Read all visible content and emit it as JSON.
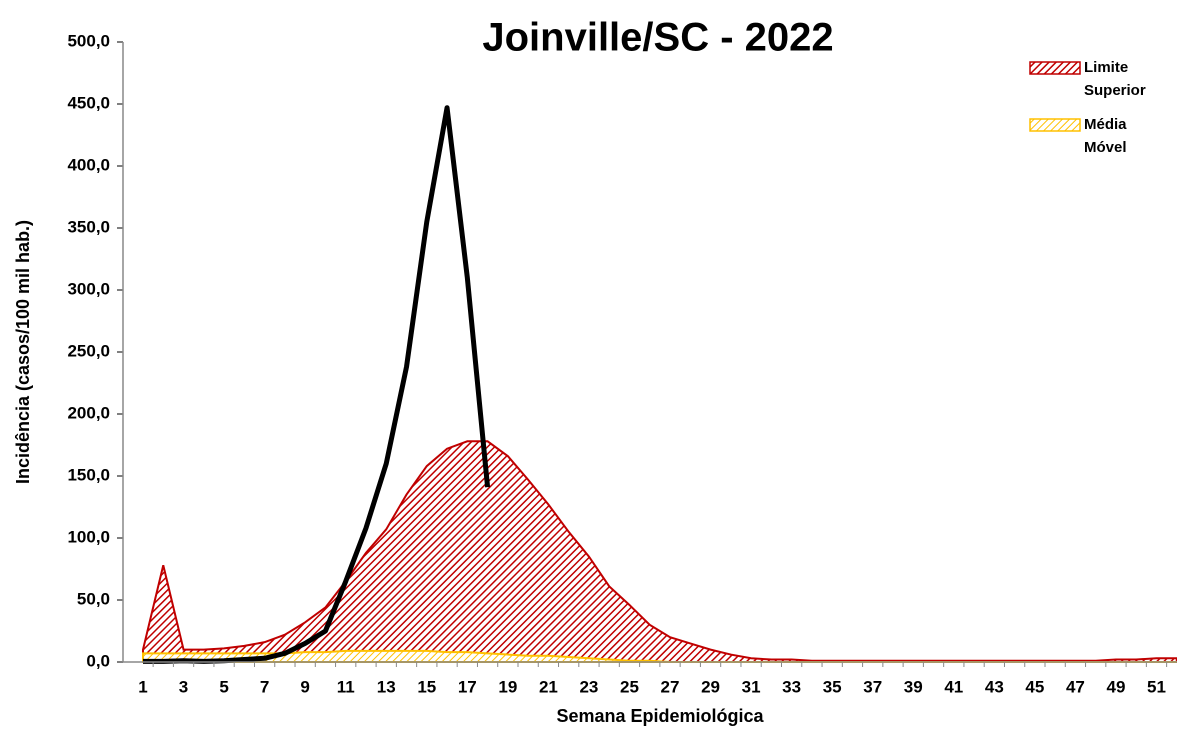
{
  "chart_data": {
    "type": "area-line",
    "title": "Joinville/SC - 2022",
    "y_label": "Incidência (casos/100 mil hab.)",
    "x_label": "Semana Epidemiológica",
    "categories": [
      "1",
      null,
      "3",
      null,
      "5",
      null,
      "7",
      null,
      "9",
      null,
      "11",
      null,
      "13",
      null,
      "15",
      null,
      "17",
      null,
      "19",
      null,
      "21",
      null,
      "23",
      null,
      "25",
      null,
      "27",
      null,
      "29",
      null,
      "31",
      null,
      "33",
      null,
      "35",
      null,
      "37",
      null,
      "39",
      null,
      "41",
      null,
      "43",
      null,
      "45",
      null,
      "47",
      null,
      "49",
      null,
      "51",
      null
    ],
    "ylim": [
      0,
      500
    ],
    "yticks": [
      {
        "value": 0,
        "label": "0,0"
      },
      {
        "value": 50,
        "label": "50,0"
      },
      {
        "value": 100,
        "label": "100,0"
      },
      {
        "value": 150,
        "label": "150,0"
      },
      {
        "value": 200,
        "label": "200,0"
      },
      {
        "value": 250,
        "label": "250,0"
      },
      {
        "value": 300,
        "label": "300,0"
      },
      {
        "value": 350,
        "label": "350,0"
      },
      {
        "value": 400,
        "label": "400,0"
      },
      {
        "value": 450,
        "label": "450,0"
      },
      {
        "value": 500,
        "label": "500,0"
      }
    ],
    "legend": "top-right",
    "series": [
      {
        "name": "Limite Superior",
        "kind": "area",
        "color": "#c00000",
        "values": [
          10,
          78,
          10,
          10,
          11,
          13,
          16,
          22,
          32,
          44,
          65,
          88,
          107,
          135,
          158,
          172,
          178,
          178,
          166,
          147,
          127,
          105,
          85,
          61,
          46,
          30,
          20,
          15,
          10,
          6,
          3,
          2,
          2,
          1,
          1,
          1,
          1,
          1,
          1,
          1,
          1,
          1,
          1,
          1,
          1,
          1,
          1,
          1,
          2,
          2,
          3,
          3
        ]
      },
      {
        "name": "Média Móvel",
        "kind": "area",
        "color": "#ffc000",
        "values": [
          7,
          7,
          7,
          7,
          7,
          7,
          7,
          7,
          8,
          8,
          9,
          9,
          9,
          9,
          9,
          8,
          8,
          7,
          6,
          5,
          5,
          4,
          3,
          2,
          1,
          1,
          0,
          0,
          0,
          0,
          0,
          0,
          0,
          0,
          0,
          0,
          0,
          0,
          0,
          0,
          0,
          0,
          0,
          0,
          0,
          0,
          0,
          0,
          0,
          0,
          0,
          0
        ]
      },
      {
        "kind": "line",
        "color": "#000000",
        "values": [
          0.5,
          0.5,
          1,
          0.5,
          1,
          2,
          3,
          7,
          15,
          25,
          65,
          108,
          160,
          238,
          355,
          447,
          310,
          141,
          null,
          null,
          null,
          null,
          null,
          null,
          null,
          null,
          null,
          null,
          null,
          null,
          null,
          null,
          null,
          null,
          null,
          null,
          null,
          null,
          null,
          null,
          null,
          null,
          null,
          null,
          null,
          null,
          null,
          null,
          null,
          null,
          null,
          null
        ]
      }
    ]
  }
}
